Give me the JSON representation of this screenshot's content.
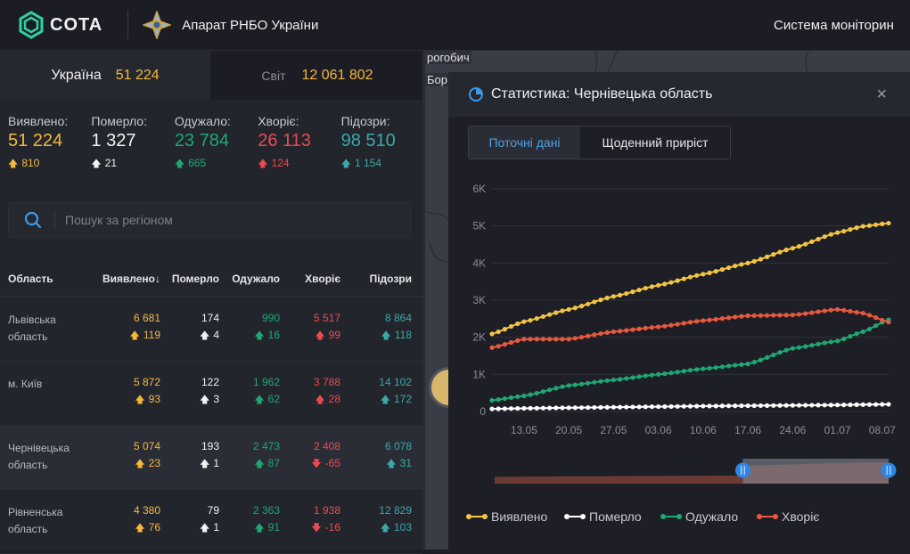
{
  "header": {
    "logo_text": "COTA",
    "org_name": "Апарат РНБО України",
    "system_title": "Система моніторин"
  },
  "summary_tabs": {
    "ukraine_label": "Україна",
    "ukraine_value": "51 224",
    "world_label": "Світ",
    "world_value": "12 061 802"
  },
  "stats": [
    {
      "label": "Виявлено:",
      "value": "51 224",
      "delta": "810",
      "color": "yellow"
    },
    {
      "label": "Померло:",
      "value": "1 327",
      "delta": "21",
      "color": "white"
    },
    {
      "label": "Одужало:",
      "value": "23 784",
      "delta": "665",
      "color": "green"
    },
    {
      "label": "Хворіє:",
      "value": "26 113",
      "delta": "124",
      "color": "red"
    },
    {
      "label": "Підозри:",
      "value": "98 510",
      "delta": "1 154",
      "color": "teal"
    }
  ],
  "search": {
    "placeholder": "Пошук за регіоном"
  },
  "table": {
    "headers": {
      "region": "Область",
      "detected": "Виявлено",
      "sort_icon": "↓",
      "died": "Померло",
      "recovered": "Одужало",
      "sick": "Хворіє",
      "suspected": "Підозри"
    },
    "rows": [
      {
        "name": "Львівська область",
        "detected": "6 681",
        "detected_d": "119",
        "died": "174",
        "died_d": "4",
        "recovered": "990",
        "recovered_d": "16",
        "sick": "5 517",
        "sick_d": "99",
        "sick_dir": "up",
        "suspected": "8 864",
        "suspected_d": "118"
      },
      {
        "name": "м. Київ",
        "detected": "5 872",
        "detected_d": "93",
        "died": "122",
        "died_d": "3",
        "recovered": "1 962",
        "recovered_d": "62",
        "sick": "3 788",
        "sick_d": "28",
        "sick_dir": "up",
        "suspected": "14 102",
        "suspected_d": "172"
      },
      {
        "name": "Чернівецька область",
        "detected": "5 074",
        "detected_d": "23",
        "died": "193",
        "died_d": "1",
        "recovered": "2 473",
        "recovered_d": "87",
        "sick": "2 408",
        "sick_d": "-65",
        "sick_dir": "down",
        "suspected": "6 078",
        "suspected_d": "31",
        "active": true
      },
      {
        "name": "Рівненська область",
        "detected": "4 380",
        "detected_d": "76",
        "died": "79",
        "died_d": "1",
        "recovered": "2 363",
        "recovered_d": "91",
        "sick": "1 938",
        "sick_d": "-16",
        "sick_dir": "down",
        "suspected": "12 829",
        "suspected_d": "103"
      }
    ]
  },
  "map": {
    "label1": "рогобич",
    "label2": "Бор"
  },
  "panel": {
    "title": "Статистика: Чернівецька область",
    "close_icon": "×",
    "tabs": [
      "Поточні дані",
      "Щоденний приріст"
    ],
    "active_tab": 0
  },
  "colors": {
    "yellow": "#f5b83d",
    "white": "#f2f2f2",
    "green": "#1fa774",
    "red": "#e84b52",
    "teal": "#3aa9a6",
    "accent": "#4ea1e3"
  },
  "chart_data": {
    "type": "line",
    "title": "",
    "xlabel": "",
    "ylabel": "",
    "ylim": [
      0,
      6000
    ],
    "y_ticks": [
      "0",
      "1K",
      "2K",
      "3K",
      "4K",
      "5K",
      "6K"
    ],
    "x_ticks": [
      "13.05",
      "20.05",
      "27.05",
      "03.06",
      "10.06",
      "17.06",
      "24.06",
      "01.07",
      "08.07"
    ],
    "x_start": "08.05",
    "x_end": "09.07",
    "grid": true,
    "legend_position": "bottom-left",
    "x": [
      "08.05",
      "13.05",
      "20.05",
      "27.05",
      "03.06",
      "10.06",
      "17.06",
      "24.06",
      "01.07",
      "05.07",
      "09.07"
    ],
    "series": [
      {
        "name": "Виявлено",
        "color": "#f5c542",
        "values": [
          2090,
          2420,
          2750,
          3100,
          3400,
          3700,
          4000,
          4400,
          4820,
          4990,
          5074
        ]
      },
      {
        "name": "Померло",
        "color": "#ffffff",
        "values": [
          70,
          85,
          100,
          115,
          130,
          145,
          155,
          165,
          175,
          185,
          193
        ]
      },
      {
        "name": "Одужало",
        "color": "#1fa774",
        "values": [
          300,
          420,
          700,
          850,
          1000,
          1150,
          1280,
          1700,
          1900,
          2150,
          2473
        ]
      },
      {
        "name": "Хворіє",
        "color": "#e8593f",
        "values": [
          1720,
          1950,
          1950,
          2150,
          2280,
          2450,
          2580,
          2600,
          2750,
          2650,
          2408
        ]
      }
    ],
    "range_selector": {
      "start_fraction": 0.63,
      "end_fraction": 1.0
    }
  }
}
